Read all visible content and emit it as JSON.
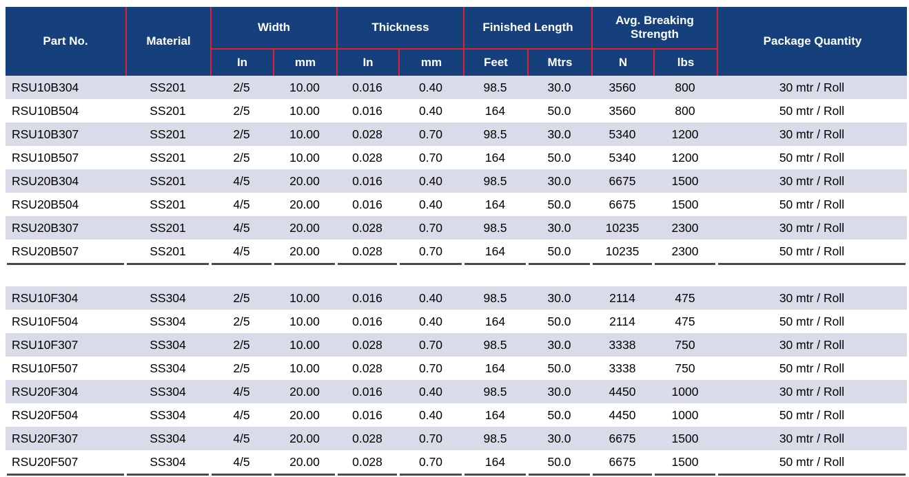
{
  "table": {
    "header": {
      "part_no": "Part No.",
      "material": "Material",
      "width": "Width",
      "thickness": "Thickness",
      "finished_length": "Finished Length",
      "avg_breaking_strength": "Avg. Breaking Strength",
      "package_quantity": "Package Quantity",
      "units": {
        "width_in": "In",
        "width_mm": "mm",
        "thickness_in": "In",
        "thickness_mm": "mm",
        "length_feet": "Feet",
        "length_mtrs": "Mtrs",
        "strength_n": "N",
        "strength_lbs": "lbs"
      }
    },
    "column_ids": [
      "part-no",
      "material",
      "width-in",
      "width-mm",
      "thickness-in",
      "thickness-mm",
      "length-feet",
      "length-mtrs",
      "strength-n",
      "strength-lbs",
      "package-quantity"
    ],
    "groups": [
      {
        "rows": [
          [
            "RSU10B304",
            "SS201",
            "2/5",
            "10.00",
            "0.016",
            "0.40",
            "98.5",
            "30.0",
            "3560",
            "800",
            "30 mtr / Roll"
          ],
          [
            "RSU10B504",
            "SS201",
            "2/5",
            "10.00",
            "0.016",
            "0.40",
            "164",
            "50.0",
            "3560",
            "800",
            "50 mtr / Roll"
          ],
          [
            "RSU10B307",
            "SS201",
            "2/5",
            "10.00",
            "0.028",
            "0.70",
            "98.5",
            "30.0",
            "5340",
            "1200",
            "30 mtr / Roll"
          ],
          [
            "RSU10B507",
            "SS201",
            "2/5",
            "10.00",
            "0.028",
            "0.70",
            "164",
            "50.0",
            "5340",
            "1200",
            "50 mtr / Roll"
          ],
          [
            "RSU20B304",
            "SS201",
            "4/5",
            "20.00",
            "0.016",
            "0.40",
            "98.5",
            "30.0",
            "6675",
            "1500",
            "30 mtr / Roll"
          ],
          [
            "RSU20B504",
            "SS201",
            "4/5",
            "20.00",
            "0.016",
            "0.40",
            "164",
            "50.0",
            "6675",
            "1500",
            "50 mtr / Roll"
          ],
          [
            "RSU20B307",
            "SS201",
            "4/5",
            "20.00",
            "0.028",
            "0.70",
            "98.5",
            "30.0",
            "10235",
            "2300",
            "30 mtr / Roll"
          ],
          [
            "RSU20B507",
            "SS201",
            "4/5",
            "20.00",
            "0.028",
            "0.70",
            "164",
            "50.0",
            "10235",
            "2300",
            "50 mtr / Roll"
          ]
        ]
      },
      {
        "rows": [
          [
            "RSU10F304",
            "SS304",
            "2/5",
            "10.00",
            "0.016",
            "0.40",
            "98.5",
            "30.0",
            "2114",
            "475",
            "30 mtr / Roll"
          ],
          [
            "RSU10F504",
            "SS304",
            "2/5",
            "10.00",
            "0.016",
            "0.40",
            "164",
            "50.0",
            "2114",
            "475",
            "50 mtr / Roll"
          ],
          [
            "RSU10F307",
            "SS304",
            "2/5",
            "10.00",
            "0.028",
            "0.70",
            "98.5",
            "30.0",
            "3338",
            "750",
            "30 mtr / Roll"
          ],
          [
            "RSU10F507",
            "SS304",
            "2/5",
            "10.00",
            "0.028",
            "0.70",
            "164",
            "50.0",
            "3338",
            "750",
            "50 mtr / Roll"
          ],
          [
            "RSU20F304",
            "SS304",
            "4/5",
            "20.00",
            "0.016",
            "0.40",
            "98.5",
            "30.0",
            "4450",
            "1000",
            "30 mtr / Roll"
          ],
          [
            "RSU20F504",
            "SS304",
            "4/5",
            "20.00",
            "0.016",
            "0.40",
            "164",
            "50.0",
            "4450",
            "1000",
            "50 mtr / Roll"
          ],
          [
            "RSU20F307",
            "SS304",
            "4/5",
            "20.00",
            "0.028",
            "0.70",
            "98.5",
            "30.0",
            "6675",
            "1500",
            "30 mtr / Roll"
          ],
          [
            "RSU20F507",
            "SS304",
            "4/5",
            "20.00",
            "0.028",
            "0.70",
            "164",
            "50.0",
            "6675",
            "1500",
            "50 mtr / Roll"
          ]
        ]
      }
    ]
  },
  "colors": {
    "header_bg": "#16407c",
    "header_text": "#ffffff",
    "grid_red": "#e11f2d",
    "row_stripe": "#d9dbe9",
    "row_white": "#ffffff",
    "divider_line": "#4a4a4a",
    "body_text": "#000000"
  }
}
